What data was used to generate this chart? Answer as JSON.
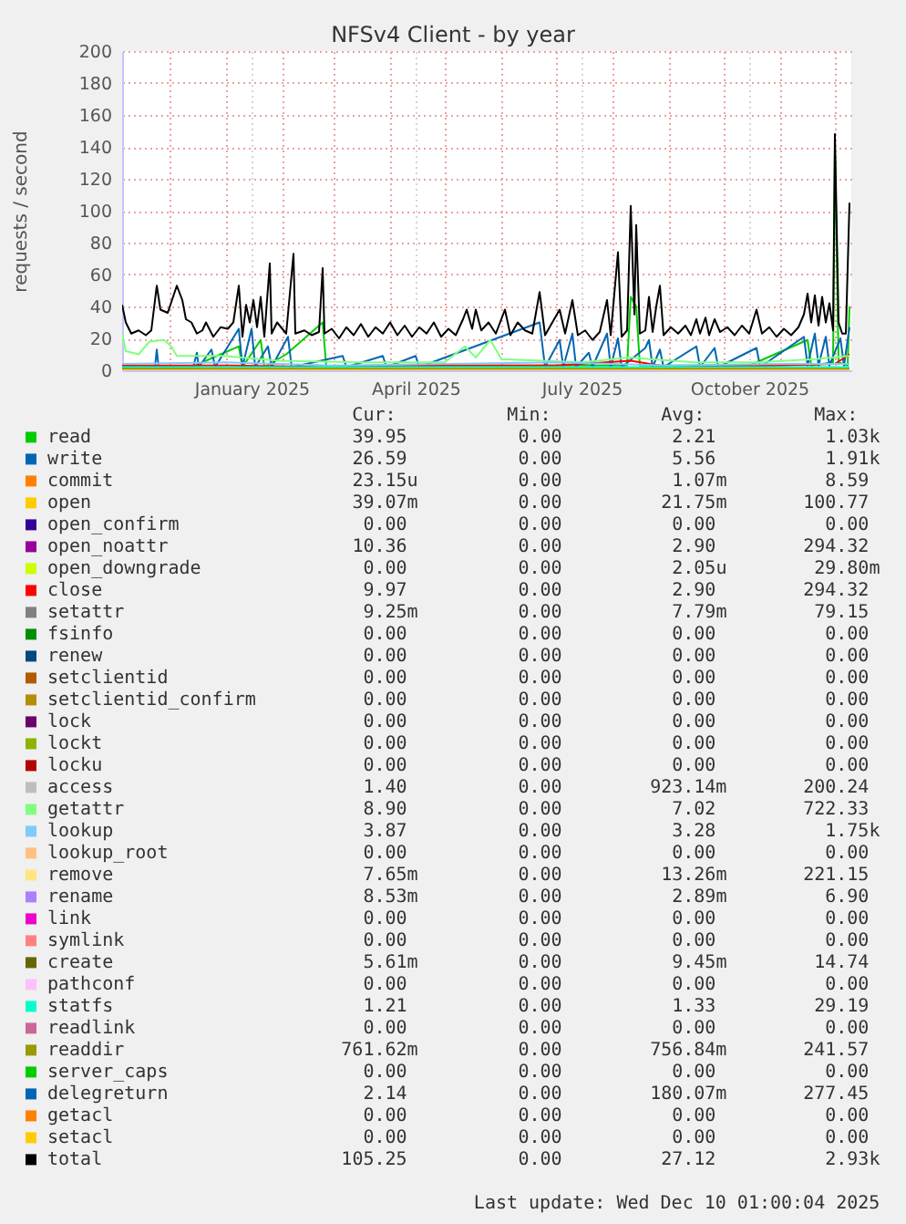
{
  "chart_data": {
    "type": "line",
    "title": "NFSv4 Client - by year",
    "ylabel": "requests / second",
    "xlim": [
      "2024-11-05",
      "2025-12-10"
    ],
    "xticks": [
      {
        "value": "2024-12-01",
        "label": null
      },
      {
        "value": "2025-01-01",
        "label": null
      },
      {
        "value": "2025-01-15",
        "label": "January 2025"
      },
      {
        "value": "2025-02-01",
        "label": null
      },
      {
        "value": "2025-03-01",
        "label": null
      },
      {
        "value": "2025-04-01",
        "label": null
      },
      {
        "value": "2025-04-15",
        "label": "April 2025"
      },
      {
        "value": "2025-05-01",
        "label": null
      },
      {
        "value": "2025-06-01",
        "label": null
      },
      {
        "value": "2025-07-01",
        "label": null
      },
      {
        "value": "2025-07-15",
        "label": "July 2025"
      },
      {
        "value": "2025-08-01",
        "label": null
      },
      {
        "value": "2025-09-01",
        "label": null
      },
      {
        "value": "2025-10-01",
        "label": null
      },
      {
        "value": "2025-10-15",
        "label": "October 2025"
      },
      {
        "value": "2025-11-01",
        "label": null
      },
      {
        "value": "2025-12-01",
        "label": null
      }
    ],
    "ylim": [
      0,
      200
    ],
    "yticks": [
      0,
      20,
      40,
      60,
      80,
      100,
      120,
      140,
      160,
      180,
      200
    ],
    "grid": true,
    "legend": "bottom",
    "series": [
      {
        "name": "read",
        "color": "#00cc00",
        "x": [
          "2024-11-05",
          "2024-12-15",
          "2025-01-08",
          "2025-01-10",
          "2025-01-20",
          "2025-01-22",
          "2025-02-03",
          "2025-02-23",
          "2025-02-25",
          "2025-05-03",
          "2025-07-06",
          "2025-08-09",
          "2025-08-11",
          "2025-08-14",
          "2025-08-16",
          "2025-10-15",
          "2025-11-16",
          "2025-11-18",
          "2025-11-30",
          "2025-12-01",
          "2025-12-03",
          "2025-12-08",
          "2025-12-09"
        ],
        "values": [
          2,
          3,
          15,
          2,
          19,
          2,
          10,
          30,
          2,
          3,
          3,
          3,
          46,
          40,
          3,
          3,
          19,
          3,
          5,
          140,
          5,
          3,
          40
        ]
      },
      {
        "name": "write",
        "color": "#0066b3",
        "x": [
          "2024-11-05",
          "2024-11-23",
          "2024-11-24",
          "2024-11-25",
          "2024-12-14",
          "2024-12-16",
          "2024-12-17",
          "2024-12-24",
          "2024-12-26",
          "2025-01-08",
          "2025-01-10",
          "2025-01-15",
          "2025-01-17",
          "2025-01-24",
          "2025-01-26",
          "2025-02-04",
          "2025-02-06",
          "2025-03-06",
          "2025-03-08",
          "2025-03-28",
          "2025-03-30",
          "2025-04-15",
          "2025-04-17",
          "2025-06-22",
          "2025-06-25",
          "2025-07-03",
          "2025-07-05",
          "2025-07-10",
          "2025-07-12",
          "2025-07-19",
          "2025-07-21",
          "2025-07-29",
          "2025-07-31",
          "2025-08-04",
          "2025-08-06",
          "2025-08-19",
          "2025-08-21",
          "2025-08-23",
          "2025-08-27",
          "2025-08-29",
          "2025-09-16",
          "2025-09-18",
          "2025-09-26",
          "2025-09-28",
          "2025-10-19",
          "2025-10-21",
          "2025-11-14",
          "2025-11-16",
          "2025-11-20",
          "2025-11-22",
          "2025-11-26",
          "2025-11-28",
          "2025-12-04",
          "2025-12-06",
          "2025-12-09"
        ],
        "values": [
          2,
          2,
          13,
          2,
          2,
          11,
          2,
          13,
          2,
          26,
          2,
          26,
          2,
          15,
          2,
          21,
          2,
          9,
          2,
          9,
          2,
          9,
          2,
          30,
          2,
          19,
          2,
          23,
          2,
          11,
          2,
          23,
          2,
          20,
          2,
          14,
          19,
          2,
          13,
          2,
          15,
          2,
          14,
          2,
          14,
          2,
          21,
          3,
          23,
          3,
          21,
          3,
          20,
          3,
          27
        ]
      },
      {
        "name": "commit",
        "color": "#ff8000"
      },
      {
        "name": "open",
        "color": "#ffcc00"
      },
      {
        "name": "open_confirm",
        "color": "#330099"
      },
      {
        "name": "open_noattr",
        "color": "#990099"
      },
      {
        "name": "open_downgrade",
        "color": "#ccff00"
      },
      {
        "name": "close",
        "color": "#ff0000",
        "x": [
          "2024-11-05",
          "2025-01-01",
          "2025-03-01",
          "2025-05-01",
          "2025-07-01",
          "2025-08-11",
          "2025-09-01",
          "2025-11-01",
          "2025-12-01",
          "2025-12-09"
        ],
        "values": [
          3,
          3,
          2,
          3,
          3,
          6,
          2,
          3,
          4,
          10
        ]
      },
      {
        "name": "setattr",
        "color": "#808080"
      },
      {
        "name": "fsinfo",
        "color": "#008f00"
      },
      {
        "name": "renew",
        "color": "#00487d"
      },
      {
        "name": "setclientid",
        "color": "#b35a00"
      },
      {
        "name": "setclientid_confirm",
        "color": "#b38f00"
      },
      {
        "name": "lock",
        "color": "#6b006b"
      },
      {
        "name": "lockt",
        "color": "#8fb300"
      },
      {
        "name": "locku",
        "color": "#b30000"
      },
      {
        "name": "access",
        "color": "#bebebe"
      },
      {
        "name": "getattr",
        "color": "#80ff80",
        "x": [
          "2024-11-05",
          "2024-11-07",
          "2024-11-14",
          "2024-11-20",
          "2024-11-28",
          "2024-12-02",
          "2024-12-05",
          "2024-12-31",
          "2025-01-30",
          "2025-03-15",
          "2025-05-01",
          "2025-05-12",
          "2025-05-18",
          "2025-05-26",
          "2025-06-01",
          "2025-07-15",
          "2025-08-10",
          "2025-09-15",
          "2025-10-20",
          "2025-11-20",
          "2025-12-09"
        ],
        "values": [
          23,
          12,
          10,
          18,
          19,
          15,
          9,
          9,
          6,
          5,
          5,
          15,
          8,
          19,
          7,
          5,
          8,
          5,
          5,
          7,
          9
        ]
      },
      {
        "name": "lookup",
        "color": "#80c9ff",
        "x": [
          "2024-11-05",
          "2025-01-01",
          "2025-03-01",
          "2025-05-01",
          "2025-07-01",
          "2025-09-01",
          "2025-11-01",
          "2025-12-09"
        ],
        "values": [
          4,
          5,
          3,
          4,
          5,
          3,
          4,
          4
        ]
      },
      {
        "name": "lookup_root",
        "color": "#ffc080"
      },
      {
        "name": "remove",
        "color": "#ffe680"
      },
      {
        "name": "rename",
        "color": "#aa80ff"
      },
      {
        "name": "link",
        "color": "#ee00cc"
      },
      {
        "name": "symlink",
        "color": "#ff8080"
      },
      {
        "name": "create",
        "color": "#666600"
      },
      {
        "name": "pathconf",
        "color": "#ffbfff"
      },
      {
        "name": "statfs",
        "color": "#00ffcc",
        "x": [
          "2024-11-05",
          "2025-12-09"
        ],
        "values": [
          2,
          2
        ]
      },
      {
        "name": "readlink",
        "color": "#cc6699"
      },
      {
        "name": "readdir",
        "color": "#999900",
        "x": [
          "2024-11-05",
          "2025-12-09"
        ],
        "values": [
          1,
          1
        ]
      },
      {
        "name": "server_caps",
        "color": "#00cc00"
      },
      {
        "name": "delegreturn",
        "color": "#0066b3"
      },
      {
        "name": "getacl",
        "color": "#ff8000"
      },
      {
        "name": "setacl",
        "color": "#ffcc00",
        "x": [
          "2024-11-05",
          "2025-12-09"
        ],
        "values": [
          0,
          0
        ]
      },
      {
        "name": "total",
        "color": "#000000",
        "x": [
          "2024-11-05",
          "2024-11-07",
          "2024-11-10",
          "2024-11-14",
          "2024-11-18",
          "2024-11-21",
          "2024-11-24",
          "2024-11-26",
          "2024-11-30",
          "2024-12-05",
          "2024-12-08",
          "2024-12-10",
          "2024-12-13",
          "2024-12-16",
          "2024-12-19",
          "2024-12-21",
          "2024-12-25",
          "2024-12-29",
          "2025-01-02",
          "2025-01-05",
          "2025-01-08",
          "2025-01-10",
          "2025-01-12",
          "2025-01-14",
          "2025-01-16",
          "2025-01-18",
          "2025-01-20",
          "2025-01-22",
          "2025-01-25",
          "2025-01-26",
          "2025-01-29",
          "2025-02-03",
          "2025-02-07",
          "2025-02-08",
          "2025-02-13",
          "2025-02-17",
          "2025-02-21",
          "2025-02-23",
          "2025-02-24",
          "2025-02-28",
          "2025-03-04",
          "2025-03-08",
          "2025-03-12",
          "2025-03-16",
          "2025-03-20",
          "2025-03-24",
          "2025-03-28",
          "2025-04-01",
          "2025-04-05",
          "2025-04-09",
          "2025-04-13",
          "2025-04-17",
          "2025-04-21",
          "2025-04-25",
          "2025-04-29",
          "2025-05-03",
          "2025-05-07",
          "2025-05-11",
          "2025-05-13",
          "2025-05-16",
          "2025-05-18",
          "2025-05-21",
          "2025-05-25",
          "2025-05-29",
          "2025-06-03",
          "2025-06-06",
          "2025-06-10",
          "2025-06-14",
          "2025-06-18",
          "2025-06-22",
          "2025-06-25",
          "2025-06-29",
          "2025-07-03",
          "2025-07-06",
          "2025-07-10",
          "2025-07-13",
          "2025-07-17",
          "2025-07-21",
          "2025-07-25",
          "2025-07-29",
          "2025-07-31",
          "2025-08-04",
          "2025-08-06",
          "2025-08-09",
          "2025-08-11",
          "2025-08-13",
          "2025-08-14",
          "2025-08-16",
          "2025-08-19",
          "2025-08-21",
          "2025-08-23",
          "2025-08-25",
          "2025-08-27",
          "2025-08-29",
          "2025-09-02",
          "2025-09-06",
          "2025-09-10",
          "2025-09-13",
          "2025-09-16",
          "2025-09-18",
          "2025-09-21",
          "2025-09-23",
          "2025-09-26",
          "2025-09-29",
          "2025-10-03",
          "2025-10-07",
          "2025-10-11",
          "2025-10-15",
          "2025-10-19",
          "2025-10-22",
          "2025-10-26",
          "2025-10-30",
          "2025-11-03",
          "2025-11-07",
          "2025-11-11",
          "2025-11-14",
          "2025-11-16",
          "2025-11-18",
          "2025-11-20",
          "2025-11-22",
          "2025-11-24",
          "2025-11-26",
          "2025-11-28",
          "2025-11-30",
          "2025-12-01",
          "2025-12-03",
          "2025-12-05",
          "2025-12-07",
          "2025-12-09"
        ],
        "values": [
          41,
          30,
          23,
          25,
          22,
          25,
          53,
          38,
          36,
          53,
          44,
          32,
          30,
          23,
          25,
          30,
          21,
          27,
          26,
          30,
          53,
          21,
          41,
          30,
          44,
          27,
          46,
          21,
          67,
          23,
          30,
          23,
          73,
          23,
          25,
          22,
          24,
          64,
          23,
          26,
          20,
          27,
          22,
          29,
          21,
          27,
          23,
          30,
          22,
          28,
          21,
          27,
          23,
          30,
          21,
          26,
          22,
          32,
          38,
          26,
          38,
          25,
          30,
          23,
          38,
          22,
          30,
          25,
          23,
          49,
          22,
          30,
          38,
          23,
          44,
          22,
          25,
          19,
          24,
          44,
          22,
          74,
          21,
          25,
          103,
          35,
          91,
          23,
          25,
          46,
          24,
          40,
          53,
          22,
          27,
          23,
          28,
          22,
          32,
          23,
          33,
          22,
          32,
          24,
          27,
          22,
          28,
          23,
          38,
          23,
          27,
          21,
          26,
          22,
          27,
          35,
          48,
          30,
          47,
          28,
          46,
          30,
          42,
          25,
          148,
          30,
          23,
          23,
          105
        ]
      }
    ],
    "annotations": [
      "Cur:",
      "Min:",
      "Avg:",
      "Max:",
      "39.95",
      "0.00",
      "2.21",
      "1.03k",
      "26.59",
      "0.00",
      "5.56",
      "1.91k",
      "23.15u",
      "0.00",
      "1.07m",
      "8.59",
      "39.07m",
      "0.00",
      "21.75m",
      "100.77",
      "0.00",
      "0.00",
      "0.00",
      "0.00",
      "10.36",
      "0.00",
      "2.90",
      "294.32",
      "0.00",
      "0.00",
      "2.05u",
      "29.80m",
      "9.97",
      "0.00",
      "2.90",
      "294.32",
      "9.25m",
      "0.00",
      "7.79m",
      "79.15",
      "0.00",
      "0.00",
      "0.00",
      "0.00",
      "0.00",
      "0.00",
      "0.00",
      "0.00",
      "0.00",
      "0.00",
      "0.00",
      "0.00",
      "0.00",
      "0.00",
      "0.00",
      "0.00",
      "0.00",
      "0.00",
      "0.00",
      "0.00",
      "0.00",
      "0.00",
      "0.00",
      "0.00",
      "0.00",
      "0.00",
      "0.00",
      "0.00",
      "1.40",
      "0.00",
      "923.14m",
      "200.24",
      "8.90",
      "0.00",
      "7.02",
      "722.33",
      "3.87",
      "0.00",
      "3.28",
      "1.75k",
      "0.00",
      "0.00",
      "0.00",
      "0.00",
      "7.65m",
      "0.00",
      "13.26m",
      "221.15",
      "8.53m",
      "0.00",
      "2.89m",
      "6.90",
      "0.00",
      "0.00",
      "0.00",
      "0.00",
      "0.00",
      "0.00",
      "0.00",
      "0.00",
      "5.61m",
      "0.00",
      "9.45m",
      "14.74",
      "0.00",
      "0.00",
      "0.00",
      "0.00",
      "1.21",
      "0.00",
      "1.33",
      "29.19",
      "0.00",
      "0.00",
      "0.00",
      "0.00",
      "761.62m",
      "0.00",
      "756.84m",
      "241.57",
      "0.00",
      "0.00",
      "0.00",
      "0.00",
      "2.14",
      "0.00",
      "180.07m",
      "277.45",
      "0.00",
      "0.00",
      "0.00",
      "0.00",
      "0.00",
      "0.00",
      "0.00",
      "0.00",
      "105.25",
      "0.00",
      "27.12",
      "2.93k",
      "Last update: Wed Dec 10 01:00:04 2025"
    ]
  }
}
